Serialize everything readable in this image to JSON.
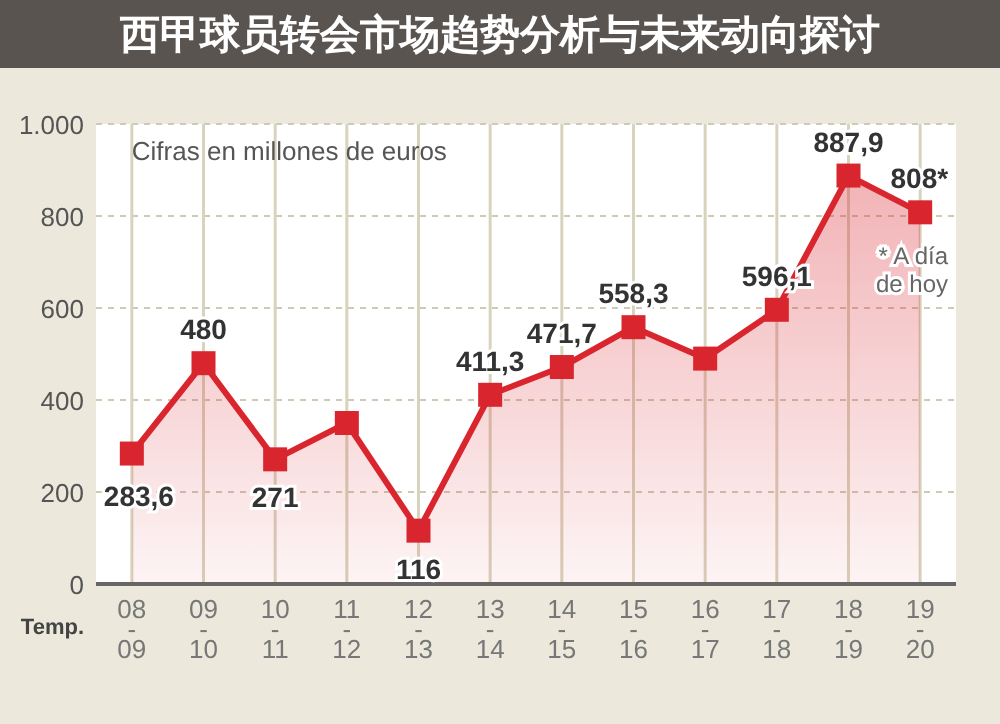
{
  "chart_data": {
    "type": "area",
    "title": "西甲球员转会市场趋势分析与未来动向探讨",
    "subtitle": "Cifras en millones de euros",
    "xlabel": "Temp.",
    "categories": [
      "08\n-\n09",
      "09\n-\n10",
      "10\n-\n11",
      "11\n-\n12",
      "12\n-\n13",
      "13\n-\n14",
      "14\n-\n15",
      "15\n-\n16",
      "16\n-\n17",
      "17\n-\n18",
      "18\n-\n19",
      "19\n-\n20"
    ],
    "series": [
      {
        "color": "#d9252e",
        "values": [
          283.6,
          480,
          271,
          350,
          116,
          411.3,
          471.7,
          558.3,
          490,
          596.1,
          887.9,
          808
        ]
      }
    ],
    "value_labels": [
      "283,6",
      "480",
      "271",
      null,
      "116",
      "411,3",
      "471,7",
      "558,3",
      null,
      "596,1",
      "887,9",
      "808*"
    ],
    "annotations": [
      "* A día de hoy"
    ],
    "ylim": [
      0,
      1000
    ],
    "yticks": [
      0,
      200,
      400,
      600,
      800,
      {
        "value": 1000,
        "label": "1.000"
      }
    ],
    "grid": true,
    "marker": "square",
    "line_style": "solid"
  }
}
